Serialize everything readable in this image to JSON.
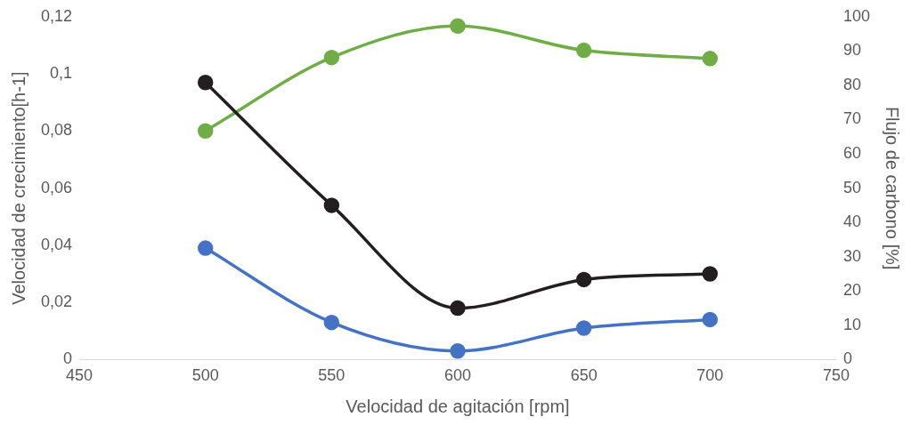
{
  "chart_data": {
    "type": "line",
    "xlabel": "Velocidad de agitación [rpm]",
    "ylabel": "Velocidad de crecimiento[h-1]",
    "y2label": "Flujo de carbono [%]",
    "x": [
      500,
      550,
      600,
      650,
      700
    ],
    "xlim": [
      450,
      750
    ],
    "xticks": [
      450,
      500,
      550,
      600,
      650,
      700,
      750
    ],
    "ylim": [
      0,
      0.12
    ],
    "yticks": [
      {
        "value": 0,
        "label": "0"
      },
      {
        "value": 0.02,
        "label": "0,02"
      },
      {
        "value": 0.04,
        "label": "0,04"
      },
      {
        "value": 0.06,
        "label": "0,06"
      },
      {
        "value": 0.08,
        "label": "0,08"
      },
      {
        "value": 0.1,
        "label": "0,1"
      },
      {
        "value": 0.12,
        "label": "0,12"
      }
    ],
    "y2lim": [
      0,
      100
    ],
    "y2ticks": [
      0,
      10,
      20,
      30,
      40,
      50,
      60,
      70,
      80,
      90,
      100
    ],
    "marker": "circle",
    "series": [
      {
        "color": "#4472c4",
        "values": [
          0.039,
          0.013,
          0.003,
          0.011,
          0.014
        ]
      },
      {
        "color": "#231f20",
        "values": [
          0.097,
          0.054,
          0.018,
          0.028,
          0.03
        ]
      },
      {
        "color": "#70ad47",
        "axis": "y2",
        "values": [
          66.7,
          88.1,
          97.3,
          90.2,
          87.8
        ]
      }
    ]
  }
}
